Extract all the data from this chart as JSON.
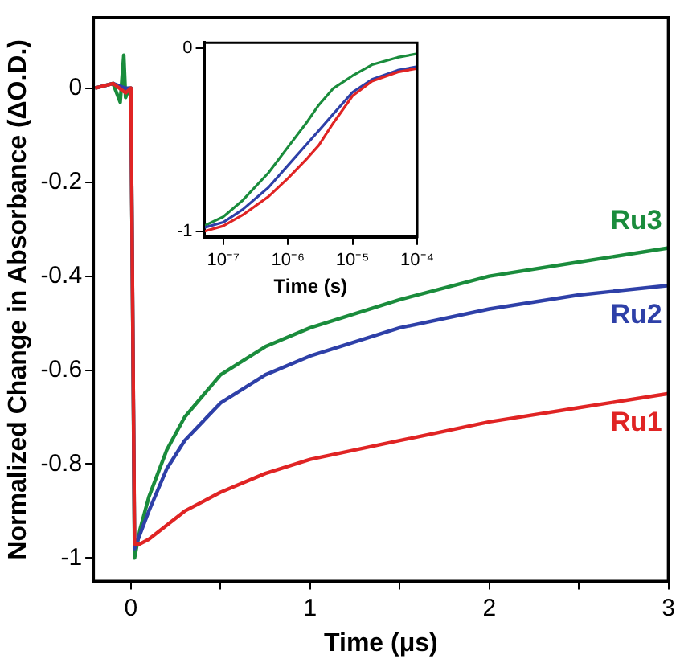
{
  "chart_data": [
    {
      "type": "line",
      "xlabel": "Time (μs)",
      "ylabel": "Normalized Change in Absorbance (ΔO.D.)",
      "xlim": [
        -0.21,
        3
      ],
      "ylim": [
        -1.05,
        0.15
      ],
      "xticks": [
        0,
        {
          "value": 0.5,
          "label": null
        },
        1,
        {
          "value": 1.5,
          "label": null
        },
        2,
        {
          "value": 2.5,
          "label": null
        },
        3
      ],
      "yticks": [
        -1,
        -0.8,
        -0.6,
        -0.4,
        -0.2,
        0
      ],
      "grid": false,
      "legend": false,
      "marker": "none",
      "line_style": "solid",
      "series": [
        {
          "name": "Ru1",
          "color": "#e02424",
          "x": [
            -0.2,
            -0.1,
            -0.03,
            0,
            0.02,
            0.05,
            0.1,
            0.2,
            0.3,
            0.5,
            0.75,
            1,
            1.5,
            2,
            2.5,
            3
          ],
          "values": [
            0,
            0.01,
            -0.01,
            0,
            -0.97,
            -0.97,
            -0.96,
            -0.93,
            -0.9,
            -0.86,
            -0.82,
            -0.79,
            -0.75,
            -0.71,
            -0.68,
            -0.65
          ]
        },
        {
          "name": "Ru2",
          "color": "#2e40a8",
          "x": [
            -0.2,
            -0.1,
            -0.03,
            0,
            0.02,
            0.05,
            0.1,
            0.2,
            0.3,
            0.5,
            0.75,
            1,
            1.5,
            2,
            2.5,
            3
          ],
          "values": [
            0,
            0.01,
            0,
            0,
            -0.98,
            -0.95,
            -0.9,
            -0.81,
            -0.75,
            -0.67,
            -0.61,
            -0.57,
            -0.51,
            -0.47,
            -0.44,
            -0.42
          ]
        },
        {
          "name": "Ru3",
          "color": "#1a8c3c",
          "x": [
            -0.2,
            -0.1,
            -0.06,
            -0.04,
            -0.03,
            -0.01,
            0,
            0.02,
            0.05,
            0.1,
            0.2,
            0.3,
            0.5,
            0.75,
            1,
            1.5,
            2,
            2.5,
            3
          ],
          "values": [
            0,
            0.01,
            -0.03,
            0.07,
            -0.02,
            0,
            0,
            -1,
            -0.94,
            -0.87,
            -0.77,
            -0.7,
            -0.61,
            -0.55,
            -0.51,
            -0.45,
            -0.4,
            -0.37,
            -0.34
          ]
        }
      ]
    },
    {
      "type": "line",
      "xlabel": "Time (s)",
      "log": "x",
      "xlim": [
        5e-08,
        0.0001
      ],
      "ylim": [
        -1.03,
        0.03
      ],
      "xticks": [
        {
          "value": 1e-07,
          "label": "10⁻⁷"
        },
        {
          "value": 1e-06,
          "label": "10⁻⁶"
        },
        {
          "value": 1e-05,
          "label": "10⁻⁵"
        },
        {
          "value": 0.0001,
          "label": "10⁻⁴"
        }
      ],
      "yticks": [
        -1,
        0
      ],
      "grid": false,
      "legend": false,
      "marker": "none",
      "line_style": "solid",
      "series": [
        {
          "color": "#e02424",
          "x": [
            5e-08,
            1e-07,
            2e-07,
            5e-07,
            1e-06,
            2e-06,
            3e-06,
            5e-06,
            1e-05,
            2e-05,
            5e-05,
            0.0001
          ],
          "values": [
            -1,
            -0.97,
            -0.91,
            -0.81,
            -0.71,
            -0.6,
            -0.53,
            -0.41,
            -0.26,
            -0.18,
            -0.13,
            -0.11
          ]
        },
        {
          "color": "#2e40a8",
          "x": [
            5e-08,
            1e-07,
            2e-07,
            5e-07,
            1e-06,
            2e-06,
            3e-06,
            5e-06,
            1e-05,
            2e-05,
            5e-05,
            0.0001
          ],
          "values": [
            -0.98,
            -0.95,
            -0.88,
            -0.76,
            -0.64,
            -0.52,
            -0.45,
            -0.36,
            -0.24,
            -0.17,
            -0.12,
            -0.1
          ]
        },
        {
          "color": "#1a8c3c",
          "x": [
            5e-08,
            1e-07,
            2e-07,
            5e-07,
            1e-06,
            2e-06,
            3e-06,
            5e-06,
            1e-05,
            2e-05,
            5e-05,
            0.0001
          ],
          "values": [
            -0.97,
            -0.92,
            -0.83,
            -0.68,
            -0.54,
            -0.4,
            -0.31,
            -0.22,
            -0.15,
            -0.09,
            -0.05,
            -0.03
          ]
        }
      ]
    }
  ]
}
